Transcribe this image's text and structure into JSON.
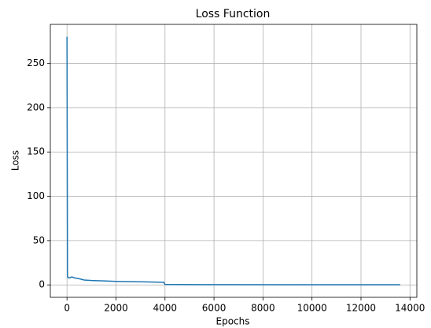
{
  "chart_data": {
    "type": "line",
    "title": "Loss Function",
    "xlabel": "Epochs",
    "ylabel": "Loss",
    "x": [
      0,
      20,
      50,
      100,
      200,
      300,
      500,
      700,
      1000,
      1500,
      2000,
      3000,
      3950,
      4000,
      6000,
      13600
    ],
    "series": [
      {
        "name": "Loss",
        "color": "#1f77b4",
        "values": [
          280,
          10,
          8,
          8,
          9,
          8,
          7,
          5.5,
          5,
          4.5,
          4,
          3.5,
          3,
          0.5,
          0.3,
          0.2
        ]
      }
    ],
    "xlim": [
      -680,
      14280
    ],
    "ylim": [
      -14,
      294
    ],
    "xticks": [
      0,
      2000,
      4000,
      6000,
      8000,
      10000,
      12000,
      14000
    ],
    "yticks": [
      0,
      50,
      100,
      150,
      200,
      250
    ],
    "grid": true
  }
}
